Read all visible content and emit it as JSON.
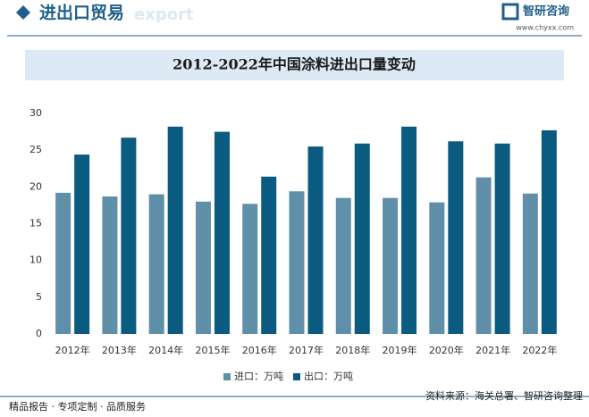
{
  "header": {
    "title": "进出口贸易",
    "watermark": "export",
    "brand": "智研咨询",
    "url": "www.chyxx.com"
  },
  "chart_data": {
    "type": "bar",
    "title": "2012-2022年中国涂料进出口量变动",
    "categories": [
      "2012年",
      "2013年",
      "2014年",
      "2015年",
      "2016年",
      "2017年",
      "2018年",
      "2019年",
      "2020年",
      "2021年",
      "2022年"
    ],
    "series": [
      {
        "name": "进口：万吨",
        "color": "#5f8fa9",
        "values": [
          19.2,
          18.7,
          19.0,
          18.0,
          17.7,
          19.4,
          18.5,
          18.5,
          17.9,
          21.3,
          19.1
        ]
      },
      {
        "name": "出口：万吨",
        "color": "#0b5a80",
        "values": [
          24.4,
          26.7,
          28.2,
          27.5,
          21.4,
          25.5,
          25.9,
          28.2,
          26.2,
          25.9,
          27.7
        ]
      }
    ],
    "ylim": [
      0,
      30
    ],
    "yticks": [
      0,
      5,
      10,
      15,
      20,
      25,
      30
    ],
    "grid": false,
    "legend": "bottom"
  },
  "footer": {
    "left": "精品报告 · 专项定制 · 品质服务",
    "right": "资料来源：海关总署、智研咨询整理"
  }
}
